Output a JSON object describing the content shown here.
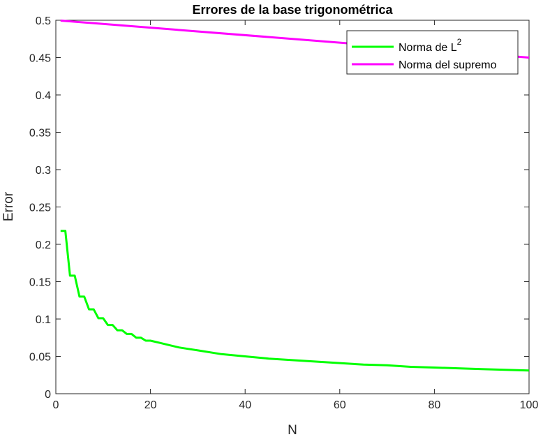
{
  "chart_data": {
    "type": "line",
    "title": "Errores de la base trigonométrica",
    "xlabel": "N",
    "ylabel": "Error",
    "xlim": [
      0,
      100
    ],
    "ylim": [
      0,
      0.5
    ],
    "xticks": [
      "0",
      "20",
      "40",
      "60",
      "80",
      "100"
    ],
    "yticks": [
      "0",
      "0.05",
      "0.1",
      "0.15",
      "0.2",
      "0.25",
      "0.3",
      "0.35",
      "0.4",
      "0.45",
      "0.5"
    ],
    "grid": false,
    "legend_position": "top-right",
    "series": [
      {
        "name_base": "Norma de L",
        "name_sup": "2",
        "color": "#00ff00",
        "x": [
          1,
          2,
          3,
          4,
          5,
          6,
          7,
          8,
          9,
          10,
          11,
          12,
          13,
          14,
          15,
          16,
          17,
          18,
          19,
          20,
          22,
          24,
          26,
          28,
          30,
          35,
          40,
          45,
          50,
          55,
          60,
          65,
          70,
          75,
          80,
          85,
          90,
          95,
          100
        ],
        "y": [
          0.218,
          0.218,
          0.158,
          0.158,
          0.13,
          0.13,
          0.113,
          0.113,
          0.101,
          0.101,
          0.092,
          0.092,
          0.085,
          0.085,
          0.08,
          0.08,
          0.075,
          0.075,
          0.071,
          0.071,
          0.068,
          0.065,
          0.062,
          0.06,
          0.058,
          0.053,
          0.05,
          0.047,
          0.045,
          0.043,
          0.041,
          0.039,
          0.038,
          0.036,
          0.035,
          0.034,
          0.033,
          0.032,
          0.031
        ]
      },
      {
        "name": "Norma del supremo",
        "color": "#ff00ff",
        "x": [
          1,
          100
        ],
        "y": [
          0.4995,
          0.45
        ]
      }
    ]
  }
}
